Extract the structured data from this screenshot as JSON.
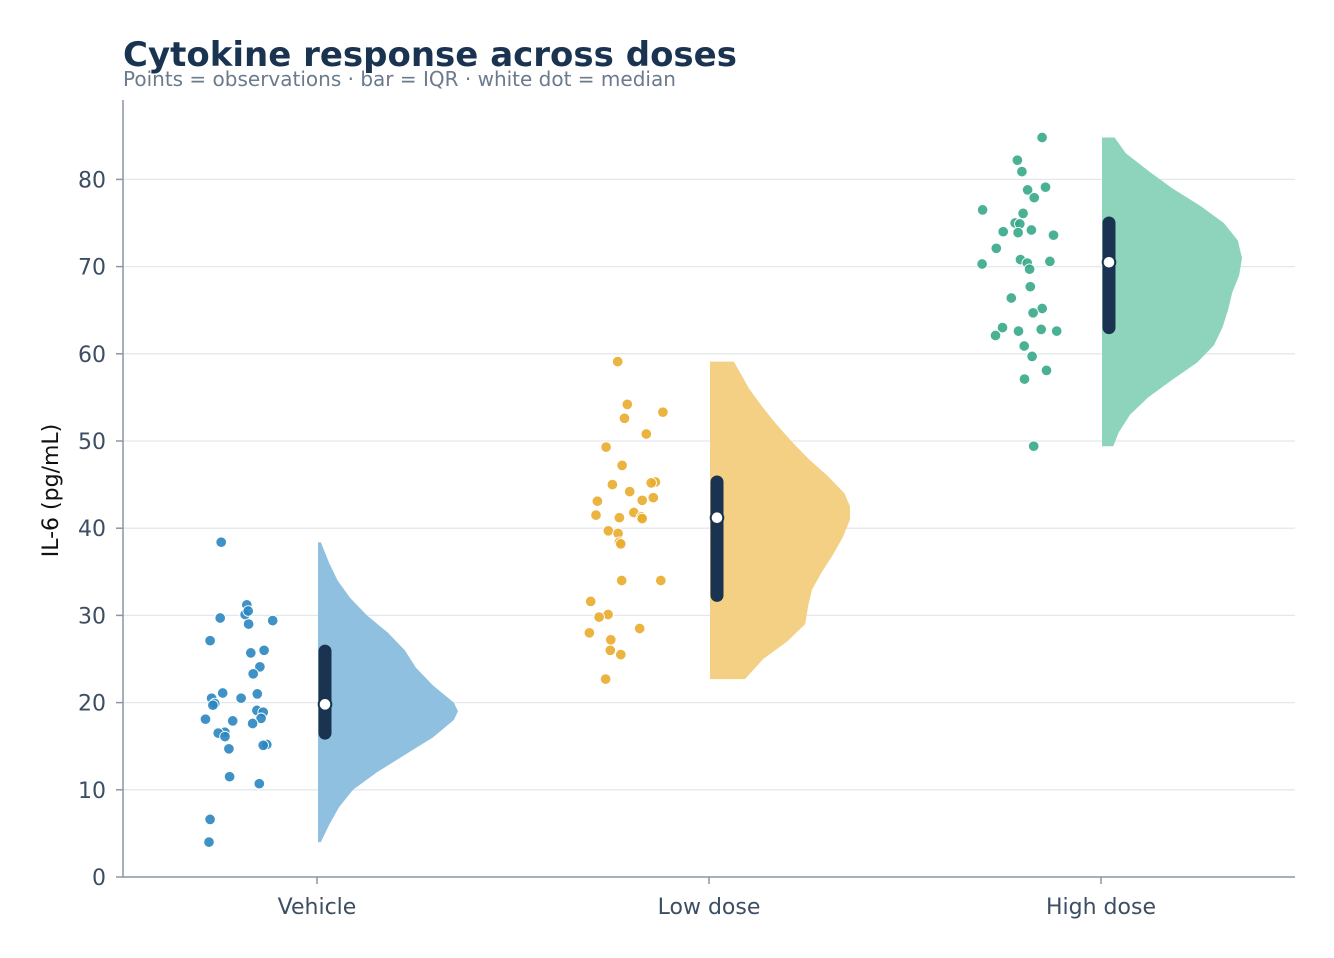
{
  "chart_data": {
    "type": "raincloud",
    "title": "Cytokine response across doses",
    "subtitle": "Points = observations · bar = IQR · white dot = median",
    "xlabel": "",
    "ylabel": "IL-6 (pg/mL)",
    "ylim": [
      0,
      89
    ],
    "yticks": [
      0,
      10,
      20,
      30,
      40,
      50,
      60,
      70,
      80
    ],
    "grid": "horizontal",
    "legend": "none",
    "categories": [
      "Vehicle",
      "Low dose",
      "High dose"
    ],
    "series": [
      {
        "category": "Vehicle",
        "color": "#2b86c0",
        "violin_color": "#8dbfde",
        "min": 4.0,
        "max": 38.4,
        "q1": 16.5,
        "median": 19.8,
        "q3": 25.9,
        "density": [
          [
            4.0,
            0.02
          ],
          [
            6.0,
            0.08
          ],
          [
            8.0,
            0.15
          ],
          [
            10.0,
            0.25
          ],
          [
            12.0,
            0.42
          ],
          [
            14.0,
            0.62
          ],
          [
            16.0,
            0.82
          ],
          [
            18.0,
            0.97
          ],
          [
            19.0,
            1.0
          ],
          [
            20.0,
            0.97
          ],
          [
            22.0,
            0.82
          ],
          [
            24.0,
            0.7
          ],
          [
            26.0,
            0.62
          ],
          [
            28.0,
            0.5
          ],
          [
            30.0,
            0.35
          ],
          [
            32.0,
            0.23
          ],
          [
            34.0,
            0.14
          ],
          [
            36.0,
            0.08
          ],
          [
            38.4,
            0.02
          ]
        ],
        "points": [
          31.2,
          29.7,
          30.1,
          29.4,
          29.0,
          30.5,
          27.1,
          26.0,
          25.7,
          24.1,
          23.3,
          21.1,
          21.0,
          20.5,
          20.5,
          19.9,
          19.7,
          19.1,
          18.9,
          18.2,
          18.1,
          17.9,
          17.6,
          16.6,
          16.5,
          16.1,
          15.2,
          15.1,
          14.7,
          11.5,
          10.7,
          6.6,
          4.0,
          38.4
        ]
      },
      {
        "category": "Low dose",
        "color": "#e9ab2a",
        "violin_color": "#f3cf82",
        "min": 22.7,
        "max": 59.1,
        "q1": 32.3,
        "median": 41.2,
        "q3": 45.3,
        "density": [
          [
            22.7,
            0.25
          ],
          [
            25.0,
            0.38
          ],
          [
            27.0,
            0.55
          ],
          [
            29.0,
            0.68
          ],
          [
            31.0,
            0.7
          ],
          [
            33.0,
            0.73
          ],
          [
            35.0,
            0.8
          ],
          [
            37.0,
            0.88
          ],
          [
            39.0,
            0.95
          ],
          [
            41.0,
            1.0
          ],
          [
            42.5,
            1.0
          ],
          [
            44.0,
            0.96
          ],
          [
            46.0,
            0.84
          ],
          [
            48.0,
            0.7
          ],
          [
            50.0,
            0.58
          ],
          [
            52.0,
            0.47
          ],
          [
            54.0,
            0.37
          ],
          [
            56.0,
            0.28
          ],
          [
            59.1,
            0.17
          ]
        ],
        "points": [
          59.1,
          54.2,
          53.3,
          52.6,
          50.8,
          49.3,
          47.2,
          45.3,
          45.2,
          45.0,
          44.2,
          43.5,
          43.2,
          43.1,
          41.8,
          41.5,
          41.3,
          41.2,
          41.1,
          39.7,
          39.4,
          38.4,
          38.2,
          34.0,
          34.0,
          31.6,
          30.1,
          29.8,
          28.5,
          28.0,
          27.2,
          26.0,
          25.5,
          22.7
        ]
      },
      {
        "category": "High dose",
        "color": "#36a98a",
        "violin_color": "#8cd3bc",
        "min": 49.4,
        "max": 84.8,
        "q1": 63.0,
        "median": 70.5,
        "q3": 75.0,
        "density": [
          [
            49.4,
            0.08
          ],
          [
            51.0,
            0.12
          ],
          [
            53.0,
            0.2
          ],
          [
            55.0,
            0.33
          ],
          [
            57.0,
            0.5
          ],
          [
            59.0,
            0.68
          ],
          [
            61.0,
            0.8
          ],
          [
            63.0,
            0.86
          ],
          [
            65.0,
            0.9
          ],
          [
            67.0,
            0.93
          ],
          [
            69.0,
            0.98
          ],
          [
            71.0,
            1.0
          ],
          [
            73.0,
            0.97
          ],
          [
            75.0,
            0.87
          ],
          [
            77.0,
            0.7
          ],
          [
            79.0,
            0.5
          ],
          [
            81.0,
            0.33
          ],
          [
            83.0,
            0.17
          ],
          [
            84.8,
            0.09
          ]
        ],
        "points": [
          84.8,
          82.2,
          80.9,
          79.1,
          78.8,
          77.9,
          76.5,
          76.1,
          75.0,
          74.9,
          74.2,
          74.0,
          73.9,
          73.6,
          72.1,
          70.8,
          70.6,
          70.4,
          70.3,
          69.7,
          67.7,
          66.4,
          65.2,
          64.7,
          63.0,
          62.8,
          62.6,
          62.6,
          62.1,
          60.9,
          59.7,
          58.1,
          57.1,
          49.4
        ]
      }
    ]
  }
}
